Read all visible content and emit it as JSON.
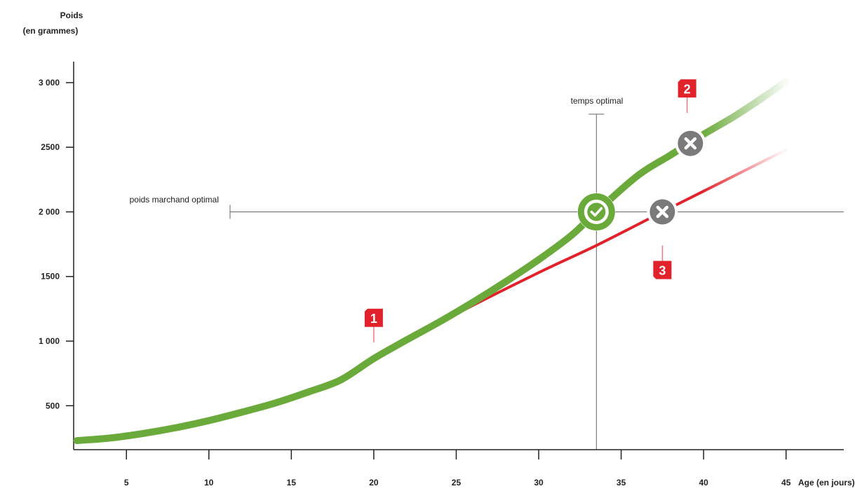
{
  "chart_data": {
    "type": "line",
    "title": "",
    "ylabel_line1": "Poids",
    "ylabel_line2": "(en grammes)",
    "xlabel": "Age (en jours)",
    "xlim": [
      1.8,
      48.5
    ],
    "ylim": [
      160,
      3260
    ],
    "x_ticks": [
      5,
      10,
      15,
      20,
      25,
      30,
      35,
      40,
      45
    ],
    "x_tick_labels": [
      "5",
      "10",
      "15",
      "20",
      "25",
      "30",
      "35",
      "40",
      "45"
    ],
    "y_ticks": [
      500,
      1000,
      1500,
      2000,
      2500,
      3000
    ],
    "y_tick_labels": [
      "500",
      "1 000",
      "1500",
      "2 000",
      "2500",
      "3 000"
    ],
    "series": [
      {
        "color": "#6aaa3a",
        "x": [
          2,
          4,
          6,
          8,
          10,
          12,
          14,
          16,
          18,
          20,
          22,
          24,
          26,
          28,
          30,
          32,
          33.5,
          36,
          38,
          40,
          42,
          44,
          45
        ],
        "y": [
          230,
          250,
          285,
          330,
          385,
          450,
          520,
          605,
          700,
          865,
          1010,
          1150,
          1300,
          1460,
          1630,
          1820,
          2000,
          2280,
          2440,
          2600,
          2750,
          2920,
          3010
        ]
      },
      {
        "color": "#e2222a",
        "x": [
          20,
          25,
          30,
          33.5,
          37.5,
          40,
          45
        ],
        "y": [
          865,
          1210,
          1530,
          1740,
          2000,
          2160,
          2480
        ]
      }
    ],
    "reference_lines": {
      "vertical_x": 33.5,
      "vertical_label": "temps optimal",
      "horizontal_y": 2000,
      "horizontal_label": "poids marchand optimal"
    },
    "markers": [
      {
        "type": "check",
        "x": 33.5,
        "y": 2000,
        "color": "#6aaa3a"
      },
      {
        "type": "cross",
        "x": 39.2,
        "y": 2530,
        "color": "#7a7a7a"
      },
      {
        "type": "cross",
        "x": 37.5,
        "y": 2000,
        "color": "#7a7a7a"
      }
    ],
    "flags": [
      {
        "label": "1",
        "x": 20,
        "y": 1180,
        "dir": "down"
      },
      {
        "label": "2",
        "x": 39.0,
        "y": 2955,
        "dir": "down"
      },
      {
        "label": "3",
        "x": 37.5,
        "y": 1550,
        "dir": "up"
      }
    ],
    "grid": false,
    "legend": "none"
  }
}
